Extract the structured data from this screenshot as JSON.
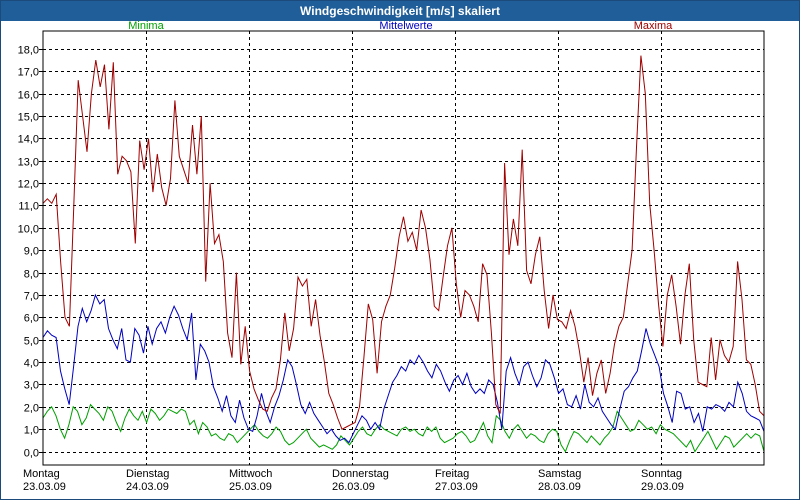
{
  "window": {
    "title": "Windgeschwindigkeit [m/s] skaliert"
  },
  "chart_data": {
    "type": "line",
    "title": "Windgeschwindigkeit [m/s] skaliert",
    "xlabel": "",
    "ylabel": "",
    "ylim": [
      -0.6,
      18.8
    ],
    "x_range": [
      0,
      7
    ],
    "y_ticks": [
      "0,0",
      "1,0",
      "2,0",
      "3,0",
      "4,0",
      "5,0",
      "6,0",
      "7,0",
      "8,0",
      "9,0",
      "10,0",
      "11,0",
      "12,0",
      "13,0",
      "14,0",
      "15,0",
      "16,0",
      "17,0",
      "18,0"
    ],
    "x_ticks": [
      {
        "day": "Montag",
        "date": "23.03.09"
      },
      {
        "day": "Dienstag",
        "date": "24.03.09"
      },
      {
        "day": "Mittwoch",
        "date": "25.03.09"
      },
      {
        "day": "Donnerstag",
        "date": "26.03.09"
      },
      {
        "day": "Freitag",
        "date": "27.03.09"
      },
      {
        "day": "Samstag",
        "date": "28.03.09"
      },
      {
        "day": "Sonntag",
        "date": "29.03.09"
      }
    ],
    "grid": true,
    "legend_position": "top",
    "series": [
      {
        "name": "Minima",
        "color": "#00a000",
        "values": [
          1.5,
          1.8,
          2.0,
          1.6,
          1.0,
          0.6,
          1.2,
          2.0,
          1.8,
          1.2,
          1.5,
          2.1,
          1.9,
          1.7,
          1.4,
          2.0,
          1.8,
          1.3,
          0.9,
          1.5,
          1.9,
          1.6,
          1.4,
          1.8,
          1.3,
          1.9,
          1.7,
          1.4,
          1.6,
          1.9,
          1.8,
          1.7,
          1.9,
          1.8,
          1.2,
          1.4,
          0.8,
          1.3,
          1.1,
          0.7,
          0.8,
          0.6,
          0.5,
          0.8,
          0.7,
          0.4,
          0.6,
          0.8,
          1.0,
          1.2,
          0.9,
          0.7,
          0.6,
          0.8,
          1.1,
          0.9,
          0.5,
          0.3,
          0.4,
          0.6,
          0.8,
          1.0,
          0.6,
          0.4,
          0.2,
          0.3,
          0.2,
          0.1,
          0.3,
          0.7,
          0.5,
          0.3,
          0.6,
          0.9,
          1.1,
          0.8,
          0.7,
          1.0,
          1.2,
          1.0,
          0.9,
          0.8,
          0.7,
          1.0,
          1.1,
          0.9,
          1.0,
          0.8,
          0.7,
          1.1,
          0.9,
          1.1,
          0.6,
          0.4,
          0.5,
          0.6,
          0.8,
          0.9,
          0.7,
          0.4,
          0.5,
          0.9,
          1.3,
          0.7,
          0.4,
          1.6,
          1.4,
          0.9,
          0.6,
          1.0,
          1.2,
          0.9,
          0.6,
          0.8,
          0.7,
          0.5,
          0.4,
          0.8,
          1.0,
          0.9,
          0.3,
          0.0,
          0.5,
          0.9,
          0.8,
          0.6,
          0.4,
          0.7,
          0.5,
          0.3,
          0.6,
          0.8,
          1.1,
          1.8,
          1.5,
          1.2,
          0.9,
          1.0,
          1.4,
          1.2,
          1.0,
          1.1,
          0.8,
          1.2,
          1.0,
          0.9,
          0.8,
          0.6,
          0.4,
          0.2,
          0.5,
          0.0,
          0.3,
          0.6,
          0.9,
          0.5,
          0.1,
          0.4,
          0.7,
          0.6,
          0.2,
          0.4,
          0.6,
          0.8,
          0.6,
          0.8,
          0.7,
          0.0
        ]
      },
      {
        "name": "Mittelwerte",
        "color": "#0000c0",
        "values": [
          5.1,
          5.4,
          5.2,
          5.1,
          3.6,
          2.8,
          2.1,
          3.8,
          5.6,
          6.4,
          5.8,
          6.3,
          7.0,
          6.6,
          6.8,
          5.5,
          5.0,
          4.6,
          5.5,
          4.1,
          4.0,
          5.5,
          5.2,
          4.4,
          5.6,
          4.8,
          5.5,
          5.8,
          5.3,
          6.0,
          6.5,
          6.1,
          5.5,
          5.0,
          6.2,
          3.2,
          4.8,
          4.5,
          4.0,
          2.9,
          2.4,
          1.8,
          2.5,
          1.6,
          1.3,
          2.3,
          1.5,
          1.0,
          0.9,
          1.6,
          2.6,
          1.8,
          1.3,
          2.0,
          2.5,
          3.2,
          4.1,
          3.8,
          3.0,
          2.1,
          1.7,
          2.2,
          1.7,
          1.4,
          1.1,
          0.8,
          1.0,
          0.7,
          0.5,
          0.6,
          0.4,
          0.8,
          1.2,
          1.6,
          1.4,
          1.0,
          1.3,
          1.0,
          1.9,
          2.5,
          3.1,
          3.4,
          3.8,
          3.6,
          4.1,
          3.9,
          4.3,
          4.0,
          3.6,
          3.3,
          3.9,
          3.6,
          3.1,
          2.7,
          3.2,
          3.4,
          3.0,
          3.5,
          2.9,
          2.6,
          2.8,
          2.6,
          3.2,
          3.0,
          2.2,
          1.0,
          3.6,
          4.2,
          3.5,
          3.0,
          3.8,
          4.0,
          3.4,
          2.9,
          3.3,
          4.1,
          3.9,
          3.3,
          2.6,
          2.8,
          2.1,
          2.0,
          2.5,
          1.9,
          3.0,
          2.2,
          2.0,
          2.4,
          1.8,
          1.5,
          1.2,
          1.0,
          1.9,
          2.7,
          2.9,
          3.3,
          3.6,
          4.5,
          5.5,
          4.8,
          4.3,
          3.8,
          2.6,
          2.0,
          1.3,
          2.7,
          2.6,
          1.9,
          2.0,
          1.3,
          1.7,
          0.9,
          2.0,
          1.9,
          2.1,
          2.0,
          1.8,
          2.2,
          2.0,
          3.1,
          2.6,
          1.8,
          1.6,
          1.5,
          1.4,
          0.9
        ]
      },
      {
        "name": "Maxima",
        "color": "#a00000",
        "values": [
          11.1,
          11.3,
          11.1,
          11.5,
          8.5,
          6.0,
          5.6,
          11.0,
          16.6,
          15.0,
          13.4,
          16.0,
          17.5,
          16.3,
          17.3,
          14.4,
          17.4,
          12.4,
          13.2,
          13.0,
          12.5,
          9.3,
          13.9,
          12.6,
          14.0,
          11.6,
          13.3,
          11.8,
          11.0,
          12.2,
          15.7,
          13.2,
          12.6,
          12.0,
          14.6,
          12.4,
          15.0,
          7.6,
          12.0,
          9.3,
          9.7,
          8.5,
          5.3,
          4.2,
          8.0,
          3.9,
          5.6,
          3.6,
          2.8,
          2.3,
          1.9,
          1.8,
          2.4,
          2.8,
          4.1,
          6.2,
          4.5,
          5.5,
          7.8,
          7.4,
          7.7,
          5.6,
          6.8,
          5.2,
          4.0,
          2.6,
          2.1,
          1.5,
          1.0,
          1.1,
          1.2,
          1.3,
          2.0,
          4.2,
          6.6,
          5.9,
          3.5,
          5.8,
          6.5,
          7.0,
          8.2,
          9.6,
          10.5,
          9.4,
          9.8,
          9.0,
          10.8,
          10.0,
          8.6,
          6.5,
          6.3,
          7.8,
          9.2,
          10.0,
          7.5,
          6.0,
          7.2,
          7.0,
          6.5,
          5.8,
          8.4,
          7.9,
          5.3,
          2.1,
          1.7,
          12.9,
          8.8,
          10.4,
          9.2,
          13.5,
          8.1,
          7.5,
          8.8,
          9.6,
          7.2,
          5.5,
          7.0,
          5.9,
          5.8,
          5.5,
          6.3,
          5.6,
          4.5,
          3.1,
          4.2,
          2.5,
          3.5,
          4.1,
          2.6,
          3.5,
          4.8,
          5.6,
          6.0,
          7.5,
          9.0,
          13.6,
          17.7,
          16.0,
          11.1,
          9.0,
          6.6,
          4.7,
          7.0,
          7.9,
          6.5,
          4.8,
          7.0,
          8.4,
          5.0,
          3.1,
          3.0,
          2.9,
          5.1,
          3.2,
          5.0,
          4.3,
          4.0,
          4.7,
          8.5,
          6.8,
          4.1,
          3.9,
          3.0,
          1.8,
          1.6
        ]
      }
    ]
  }
}
